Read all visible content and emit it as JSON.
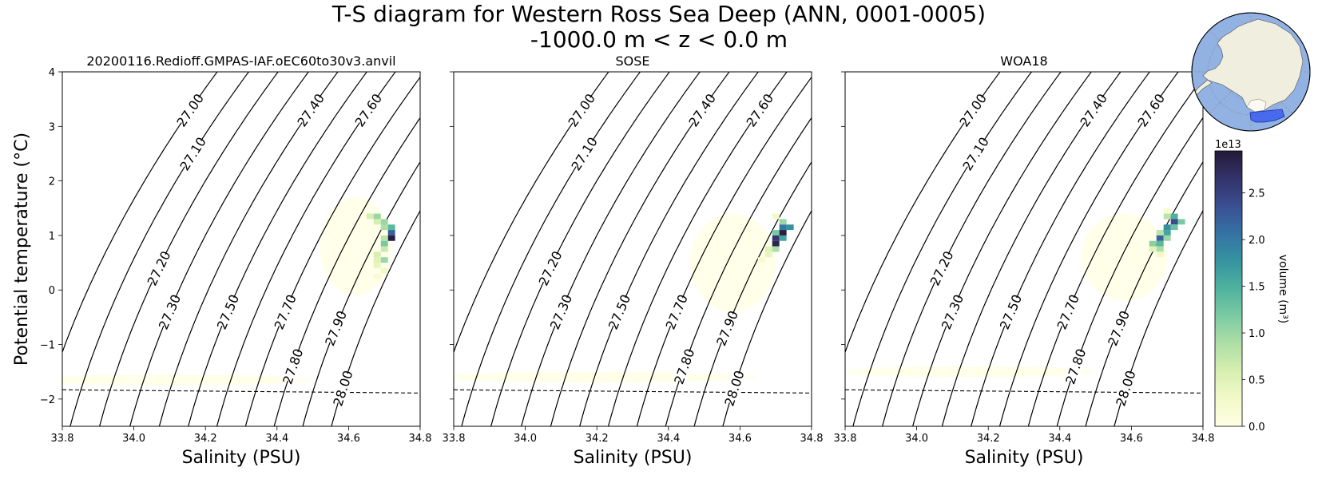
{
  "figure": {
    "title_line1": "T-S diagram for Western Ross Sea Deep (ANN, 0001-0005)",
    "title_line2": "-1000.0 m < z < 0.0 m"
  },
  "chart_data": {
    "type": "heatmap",
    "panels": [
      {
        "title": "20200116.Redioff.GMPAS-IAF.oEC60to30v3.anvil",
        "cells": [
          {
            "s": 34.66,
            "t": 1.35,
            "v": 0.6
          },
          {
            "s": 34.68,
            "t": 1.35,
            "v": 1.0
          },
          {
            "s": 34.7,
            "t": 1.25,
            "v": 1.0
          },
          {
            "s": 34.68,
            "t": 1.25,
            "v": 0.6
          },
          {
            "s": 34.72,
            "t": 1.15,
            "v": 1.4
          },
          {
            "s": 34.7,
            "t": 1.15,
            "v": 0.9
          },
          {
            "s": 34.72,
            "t": 1.05,
            "v": 2.2
          },
          {
            "s": 34.72,
            "t": 0.95,
            "v": 2.9
          },
          {
            "s": 34.7,
            "t": 0.95,
            "v": 0.8
          },
          {
            "s": 34.7,
            "t": 0.85,
            "v": 1.2
          },
          {
            "s": 34.7,
            "t": 0.75,
            "v": 0.7
          },
          {
            "s": 34.68,
            "t": 0.65,
            "v": 0.6
          },
          {
            "s": 34.7,
            "t": 0.55,
            "v": 1.0
          },
          {
            "s": 34.68,
            "t": 0.55,
            "v": 0.5
          },
          {
            "s": 34.68,
            "t": 0.45,
            "v": 0.4
          },
          {
            "s": 34.7,
            "t": 0.35,
            "v": 0.3
          },
          {
            "s": 34.68,
            "t": 0.25,
            "v": 0.2
          }
        ],
        "haze": [
          {
            "s": 34.62,
            "t": 0.8,
            "rs": 0.1,
            "rt": 0.9
          },
          {
            "s": 34.1,
            "t": -1.65,
            "rs": 0.4,
            "rt": 0.1
          }
        ]
      },
      {
        "title": "SOSE",
        "cells": [
          {
            "s": 34.72,
            "t": 1.25,
            "v": 1.0
          },
          {
            "s": 34.72,
            "t": 1.15,
            "v": 2.0
          },
          {
            "s": 34.74,
            "t": 1.15,
            "v": 1.8
          },
          {
            "s": 34.7,
            "t": 1.05,
            "v": 1.2
          },
          {
            "s": 34.72,
            "t": 1.05,
            "v": 2.9
          },
          {
            "s": 34.7,
            "t": 0.95,
            "v": 2.6
          },
          {
            "s": 34.72,
            "t": 0.95,
            "v": 1.6
          },
          {
            "s": 34.7,
            "t": 0.85,
            "v": 2.8
          },
          {
            "s": 34.7,
            "t": 0.75,
            "v": 0.9
          },
          {
            "s": 34.68,
            "t": 0.75,
            "v": 0.5
          },
          {
            "s": 34.68,
            "t": 0.65,
            "v": 0.4
          },
          {
            "s": 34.66,
            "t": 0.55,
            "v": 0.2
          },
          {
            "s": 34.7,
            "t": 1.35,
            "v": 0.3
          }
        ],
        "haze": [
          {
            "s": 34.58,
            "t": 0.5,
            "rs": 0.12,
            "rt": 0.9
          },
          {
            "s": 34.2,
            "t": -1.6,
            "rs": 0.45,
            "rt": 0.1
          }
        ]
      },
      {
        "title": "WOA18",
        "cells": [
          {
            "s": 34.7,
            "t": 1.45,
            "v": 0.2
          },
          {
            "s": 34.72,
            "t": 1.35,
            "v": 1.5
          },
          {
            "s": 34.7,
            "t": 1.35,
            "v": 0.8
          },
          {
            "s": 34.74,
            "t": 1.25,
            "v": 1.2
          },
          {
            "s": 34.72,
            "t": 1.25,
            "v": 2.4
          },
          {
            "s": 34.7,
            "t": 1.15,
            "v": 1.8
          },
          {
            "s": 34.72,
            "t": 1.15,
            "v": 1.3
          },
          {
            "s": 34.7,
            "t": 1.05,
            "v": 1.6
          },
          {
            "s": 34.68,
            "t": 1.05,
            "v": 0.8
          },
          {
            "s": 34.68,
            "t": 0.95,
            "v": 2.2
          },
          {
            "s": 34.7,
            "t": 0.95,
            "v": 1.0
          },
          {
            "s": 34.68,
            "t": 0.85,
            "v": 1.4
          },
          {
            "s": 34.66,
            "t": 0.85,
            "v": 1.1
          },
          {
            "s": 34.68,
            "t": 0.75,
            "v": 0.9
          },
          {
            "s": 34.66,
            "t": 0.75,
            "v": 0.5
          },
          {
            "s": 34.68,
            "t": 0.65,
            "v": 0.3
          }
        ],
        "haze": [
          {
            "s": 34.58,
            "t": 0.6,
            "rs": 0.12,
            "rt": 0.8
          },
          {
            "s": 34.15,
            "t": -1.5,
            "rs": 0.35,
            "rt": 0.1
          }
        ]
      }
    ],
    "xlabel": "Salinity (PSU)",
    "ylabel": "Potential temperature (°C)",
    "xlim": [
      33.8,
      34.8
    ],
    "ylim": [
      -2.5,
      4
    ],
    "xticks": [
      "33.8",
      "34.0",
      "34.2",
      "34.4",
      "34.6",
      "34.8"
    ],
    "yticks": [
      "4",
      "3",
      "2",
      "1",
      "0",
      "−1",
      "−2"
    ],
    "density_contours": [
      {
        "label": "27.00",
        "s0": 33.734,
        "dir": 1
      },
      {
        "label": "27.10",
        "s0": 33.822,
        "dir": 1
      },
      {
        "label": "27.20",
        "s0": 33.904,
        "dir": 1
      },
      {
        "label": "27.30",
        "s0": 33.989,
        "dir": 1
      },
      {
        "label": "27.40",
        "s0": 34.071,
        "dir": 1
      },
      {
        "label": "27.50",
        "s0": 34.152,
        "dir": 1
      },
      {
        "label": "27.60",
        "s0": 34.232,
        "dir": 1
      },
      {
        "label": "27.70",
        "s0": 34.312,
        "dir": 1
      },
      {
        "label": "27.80",
        "s0": 34.392,
        "dir": 1
      },
      {
        "label": "27.90",
        "s0": 34.472,
        "dir": 1
      },
      {
        "label": "28.00",
        "s0": 34.552,
        "dir": 1
      }
    ],
    "freezing_line": {
      "s0": 33.8,
      "t0": -1.83,
      "s1": 34.8,
      "t1": -1.89
    },
    "colorbar": {
      "label": "volume (m³)",
      "exponent": "1e13",
      "vmax": 2.95,
      "ticks": [
        "0.0",
        "0.5",
        "1.0",
        "1.5",
        "2.0",
        "2.5"
      ],
      "colors": [
        "#ffffe5",
        "#f2f9c9",
        "#d7efb1",
        "#aedea6",
        "#7ccba3",
        "#4fb29e",
        "#3693a0",
        "#3472a4",
        "#3a4f92",
        "#33326a",
        "#241a38"
      ]
    }
  }
}
